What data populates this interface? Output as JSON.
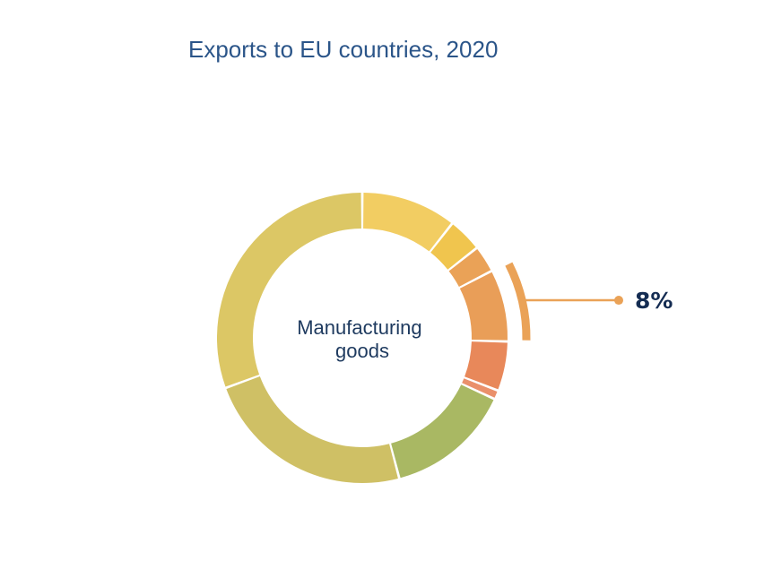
{
  "chart_data": {
    "type": "pie",
    "title": "Exports to EU countries, 2020",
    "center_label": [
      "Manufacturing",
      "goods"
    ],
    "highlighted_label": "8%",
    "slices": [
      {
        "value": 10.6,
        "color": "#f2cd62"
      },
      {
        "value": 3.8,
        "color": "#f0c54e"
      },
      {
        "value": 3.0,
        "color": "#eaa257"
      },
      {
        "value": 8.0,
        "color": "#e99e58"
      },
      {
        "value": 5.5,
        "color": "#e8885a"
      },
      {
        "value": 1.0,
        "color": "#ea906b"
      },
      {
        "value": 14.0,
        "color": "#a9b863"
      },
      {
        "value": 23.5,
        "color": "#cfc065"
      },
      {
        "value": 30.6,
        "color": "#dcc765"
      }
    ],
    "highlighted_slice": 3,
    "callout_color": "#eaa257"
  }
}
